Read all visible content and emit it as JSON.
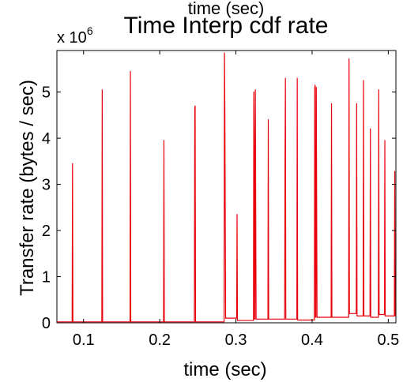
{
  "chart_data": {
    "type": "line",
    "title": "Time Interp cdf rate",
    "top_xlabel": "time (sec)",
    "xlabel": "time (sec)",
    "ylabel": "Transfer rate (bytes / sec)",
    "exponent_prefix": "x 10",
    "exponent_power": "6",
    "xlim": [
      0.065,
      0.51
    ],
    "ylim": [
      0,
      5.9
    ],
    "xticks": [
      0.1,
      0.2,
      0.3,
      0.4,
      0.5
    ],
    "xtick_labels": [
      "0.1",
      "0.2",
      "0.3",
      "0.4",
      "0.5"
    ],
    "yticks": [
      0,
      1,
      2,
      3,
      4,
      5
    ],
    "ytick_labels": [
      "0",
      "1",
      "2",
      "3",
      "4",
      "5"
    ],
    "grid": false,
    "series": [
      {
        "color": "#e8000b",
        "x": [
          0.065,
          0.085,
          0.0855,
          0.086,
          0.0865,
          0.124,
          0.1245,
          0.125,
          0.1255,
          0.161,
          0.1615,
          0.162,
          0.1625,
          0.205,
          0.2055,
          0.206,
          0.2065,
          0.2455,
          0.246,
          0.2465,
          0.247,
          0.2845,
          0.285,
          0.2855,
          0.2865,
          0.287,
          0.2875,
          0.301,
          0.3015,
          0.302,
          0.3025,
          0.323,
          0.3235,
          0.324,
          0.3245,
          0.325,
          0.3255,
          0.3265,
          0.342,
          0.3425,
          0.343,
          0.3435,
          0.364,
          0.3645,
          0.365,
          0.3655,
          0.366,
          0.3665,
          0.3675,
          0.38,
          0.3805,
          0.381,
          0.3815,
          0.403,
          0.4035,
          0.404,
          0.4045,
          0.405,
          0.4055,
          0.4065,
          0.425,
          0.4255,
          0.426,
          0.4265,
          0.448,
          0.4485,
          0.449,
          0.4495,
          0.458,
          0.4585,
          0.459,
          0.4595,
          0.467,
          0.4675,
          0.468,
          0.4685,
          0.476,
          0.4765,
          0.477,
          0.4775,
          0.487,
          0.4875,
          0.488,
          0.4885,
          0.495,
          0.4955,
          0.496,
          0.4965,
          0.508,
          0.5085,
          0.509,
          0.51
        ],
        "y": [
          0.02,
          0.02,
          3.45,
          0.02,
          0.02,
          0.02,
          5.05,
          0.02,
          0.02,
          0.02,
          5.45,
          0.02,
          0.02,
          0.02,
          3.95,
          0.02,
          0.02,
          0.02,
          4.65,
          4.7,
          0.02,
          0.02,
          5.85,
          4.6,
          0.1,
          0.1,
          0.1,
          0.1,
          2.35,
          0.05,
          0.05,
          0.05,
          5.0,
          4.05,
          0.08,
          0.08,
          5.05,
          0.08,
          0.08,
          4.4,
          0.08,
          0.08,
          0.08,
          3.55,
          5.3,
          0.08,
          0.08,
          0.08,
          0.08,
          0.08,
          5.3,
          0.06,
          0.06,
          0.06,
          5.1,
          5.15,
          0.12,
          0.12,
          5.1,
          0.12,
          0.12,
          4.75,
          0.12,
          0.12,
          0.12,
          5.72,
          0.2,
          0.2,
          0.2,
          4.75,
          0.15,
          0.15,
          0.15,
          5.25,
          0.15,
          0.15,
          0.15,
          4.2,
          0.12,
          0.12,
          0.12,
          5.05,
          0.18,
          0.18,
          0.18,
          3.95,
          0.15,
          0.15,
          0.15,
          3.28,
          0.15,
          0.15
        ]
      }
    ]
  }
}
